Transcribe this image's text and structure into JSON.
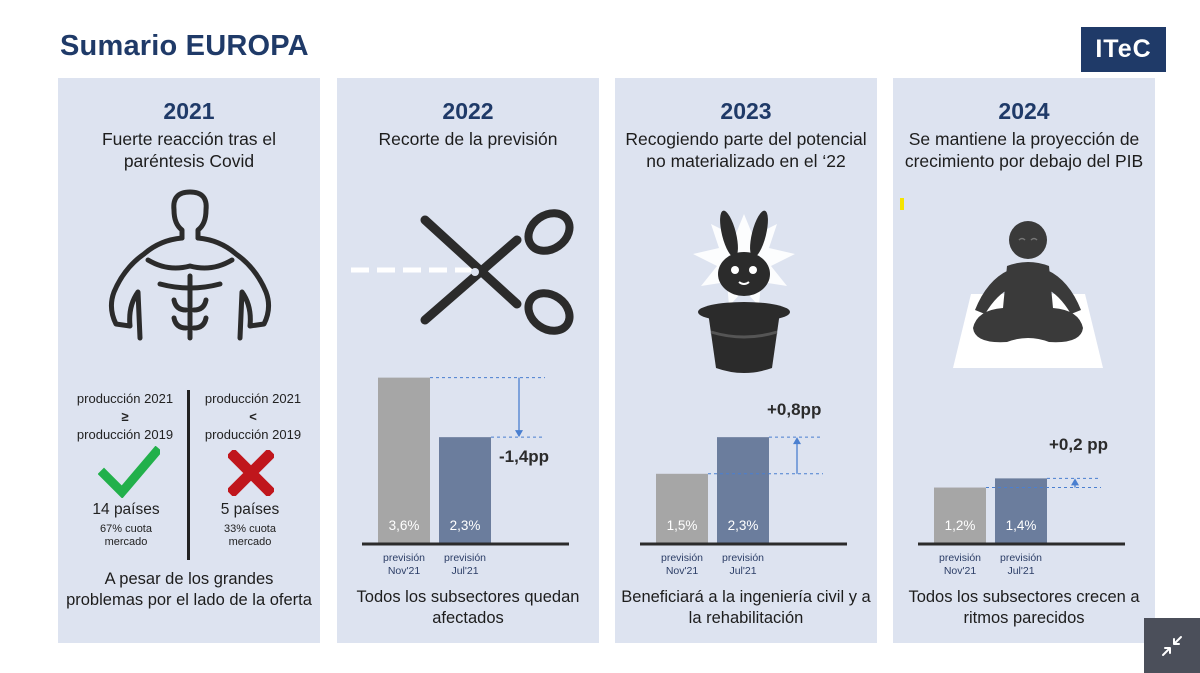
{
  "header": {
    "title": "Sumario EUROPA",
    "logo": "ITeC"
  },
  "panels": [
    {
      "year": "2021",
      "subtitle": "Fuerte reacción tras el paréntesis Covid",
      "illustration": "muscular-torso-icon",
      "comparison": {
        "left": {
          "line1": "producción  2021",
          "op": "≥",
          "line2": "producción  2019",
          "count": "14 países",
          "share_line1": "67% cuota",
          "share_line2": "mercado",
          "icon": "check-icon",
          "color": "#22b04b"
        },
        "right": {
          "line1": "producción  2021",
          "op": "<",
          "line2": "producción  2019",
          "count": "5 países",
          "share_line1": "33% cuota",
          "share_line2": "mercado",
          "icon": "cross-icon",
          "color": "#c0161c"
        }
      },
      "footer": "A pesar de los grandes problemas por el lado de la oferta"
    },
    {
      "year": "2022",
      "subtitle": "Recorte de la previsión",
      "illustration": "scissors-icon",
      "change": "-1,4pp",
      "footer": "Todos los subsectores quedan afectados"
    },
    {
      "year": "2023",
      "subtitle": "Recogiendo parte del potencial no materializado en el ‘22",
      "illustration": "rabbit-hat-icon",
      "change": "+0,8pp",
      "footer": "Beneficiará a la ingeniería civil y a la rehabilitación"
    },
    {
      "year": "2024",
      "subtitle": "Se mantiene la proyección de crecimiento por debajo del PIB",
      "illustration": "meditation-icon",
      "change": "+0,2 pp",
      "footer": "Todos los subsectores crecen a ritmos parecidos"
    }
  ],
  "chart_data": [
    {
      "type": "bar",
      "categories": [
        "previsión Nov'21",
        "previsión Jul'21"
      ],
      "values": [
        3.6,
        2.3
      ],
      "labels": [
        "3,6%",
        "2,3%"
      ],
      "colors": [
        "#a6a6a6",
        "#6b7d9d"
      ],
      "change_label": "-1,4pp"
    },
    {
      "type": "bar",
      "categories": [
        "previsión Nov'21",
        "previsión Jul'21"
      ],
      "values": [
        1.5,
        2.3
      ],
      "labels": [
        "1,5%",
        "2,3%"
      ],
      "colors": [
        "#a6a6a6",
        "#6b7d9d"
      ],
      "change_label": "+0,8pp"
    },
    {
      "type": "bar",
      "categories": [
        "previsión Nov'21",
        "previsión Jul'21"
      ],
      "values": [
        1.2,
        1.4
      ],
      "labels": [
        "1,2%",
        "1,4%"
      ],
      "colors": [
        "#a6a6a6",
        "#6b7d9d"
      ],
      "change_label": "+0,2 pp"
    }
  ],
  "controls": {
    "shrink_icon": "collapse-icon"
  }
}
